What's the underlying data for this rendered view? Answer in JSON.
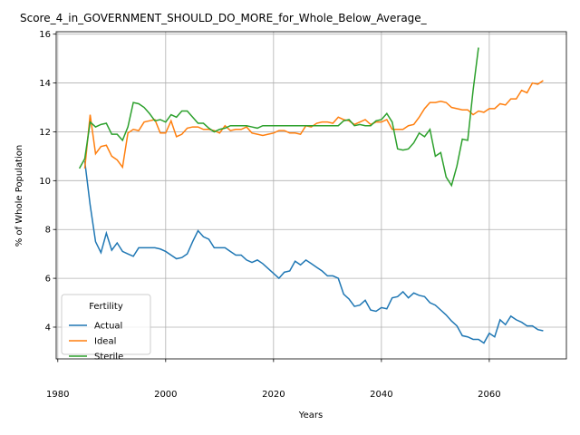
{
  "chart_data": {
    "type": "line",
    "title": "Score_4_in_GOVERNMENT_SHOULD_DO_MORE_for_Whole_Below_Average_",
    "x_label": "Years",
    "y_label": "% of Whole Population",
    "legend_title": "Fertility",
    "legend": "lower left",
    "grid": true,
    "xlim": [
      1979.7,
      2074.3
    ],
    "xticks": [
      1980,
      2000,
      2020,
      2040,
      2060
    ],
    "ylim": [
      2.7,
      16.1
    ],
    "yticks": [
      4,
      6,
      8,
      10,
      12,
      14,
      16
    ],
    "x": [
      1984,
      1985,
      1986,
      1987,
      1988,
      1989,
      1990,
      1991,
      1992,
      1993,
      1994,
      1995,
      1996,
      1997,
      1998,
      1999,
      2000,
      2001,
      2002,
      2003,
      2004,
      2005,
      2006,
      2007,
      2008,
      2009,
      2010,
      2011,
      2012,
      2013,
      2014,
      2015,
      2016,
      2017,
      2018,
      2019,
      2020,
      2021,
      2022,
      2023,
      2024,
      2025,
      2026,
      2027,
      2028,
      2029,
      2030,
      2031,
      2032,
      2033,
      2034,
      2035,
      2036,
      2037,
      2038,
      2039,
      2040,
      2041,
      2042,
      2043,
      2044,
      2045,
      2046,
      2047,
      2048,
      2049,
      2050,
      2051,
      2052,
      2053,
      2054,
      2055,
      2056,
      2057,
      2058,
      2059,
      2060,
      2061,
      2062,
      2063,
      2064,
      2065,
      2066,
      2067,
      2068,
      2069,
      2070
    ],
    "series": [
      {
        "name": "Actual",
        "color": "#1f77b4",
        "values": [
          null,
          10.8,
          9.0,
          7.5,
          7.05,
          7.85,
          7.15,
          7.45,
          7.1,
          7.0,
          6.9,
          7.25,
          7.25,
          7.25,
          7.25,
          7.2,
          7.1,
          6.95,
          6.8,
          6.85,
          7.0,
          7.5,
          7.95,
          7.7,
          7.6,
          7.25,
          7.25,
          7.25,
          7.1,
          6.95,
          6.95,
          6.75,
          6.65,
          6.75,
          6.6,
          6.4,
          6.2,
          6.0,
          6.25,
          6.3,
          6.7,
          6.55,
          6.75,
          6.6,
          6.45,
          6.3,
          6.1,
          6.1,
          6.0,
          5.35,
          5.15,
          4.85,
          4.9,
          5.1,
          4.7,
          4.65,
          4.8,
          4.75,
          5.2,
          5.25,
          5.45,
          5.2,
          5.4,
          5.3,
          5.25,
          5.0,
          4.9,
          4.7,
          4.5,
          4.25,
          4.05,
          3.65,
          3.6,
          3.5,
          3.5,
          3.35,
          3.75,
          3.6,
          4.3,
          4.1,
          4.45,
          4.3,
          4.2,
          4.05,
          4.05,
          3.9,
          3.85
        ]
      },
      {
        "name": "Ideal",
        "color": "#ff7f0e",
        "values": [
          null,
          10.5,
          12.7,
          11.1,
          11.4,
          11.45,
          11.0,
          10.85,
          10.55,
          11.95,
          12.1,
          12.05,
          12.4,
          12.45,
          12.5,
          11.95,
          11.95,
          12.45,
          11.8,
          11.9,
          12.15,
          12.2,
          12.2,
          12.1,
          12.1,
          12.05,
          11.95,
          12.25,
          12.05,
          12.1,
          12.1,
          12.2,
          11.95,
          11.9,
          11.85,
          11.9,
          11.95,
          12.05,
          12.05,
          11.95,
          11.95,
          11.9,
          12.25,
          12.2,
          12.35,
          12.4,
          12.4,
          12.35,
          12.6,
          12.5,
          12.45,
          12.3,
          12.4,
          12.5,
          12.3,
          12.4,
          12.4,
          12.5,
          12.1,
          12.1,
          12.1,
          12.25,
          12.3,
          12.6,
          12.95,
          13.2,
          13.2,
          13.25,
          13.2,
          13.0,
          12.95,
          12.9,
          12.9,
          12.7,
          12.85,
          12.8,
          12.95,
          12.95,
          13.15,
          13.1,
          13.35,
          13.35,
          13.7,
          13.6,
          14.0,
          13.95,
          14.1
        ]
      },
      {
        "name": "Sterile",
        "color": "#2ca02c",
        "values": [
          10.5,
          10.9,
          12.4,
          12.2,
          12.3,
          12.35,
          11.9,
          11.9,
          11.65,
          12.2,
          13.2,
          13.15,
          13.0,
          12.75,
          12.45,
          12.5,
          12.4,
          12.7,
          12.6,
          12.85,
          12.85,
          12.6,
          12.35,
          12.35,
          12.15,
          12.0,
          12.1,
          12.15,
          12.25,
          12.25,
          12.25,
          12.25,
          12.2,
          12.15,
          12.25,
          12.25,
          12.25,
          12.25,
          12.25,
          12.25,
          12.25,
          12.25,
          12.25,
          12.25,
          12.25,
          12.25,
          12.25,
          12.25,
          12.25,
          12.45,
          12.5,
          12.25,
          12.3,
          12.25,
          12.25,
          12.45,
          12.5,
          12.75,
          12.4,
          11.3,
          11.25,
          11.3,
          11.55,
          11.95,
          11.8,
          12.1,
          11.0,
          11.15,
          10.15,
          9.8,
          10.6,
          11.7,
          11.65,
          13.7,
          15.45,
          null,
          null,
          null,
          null,
          null,
          null,
          null,
          null,
          null,
          null,
          null,
          null
        ]
      }
    ]
  }
}
